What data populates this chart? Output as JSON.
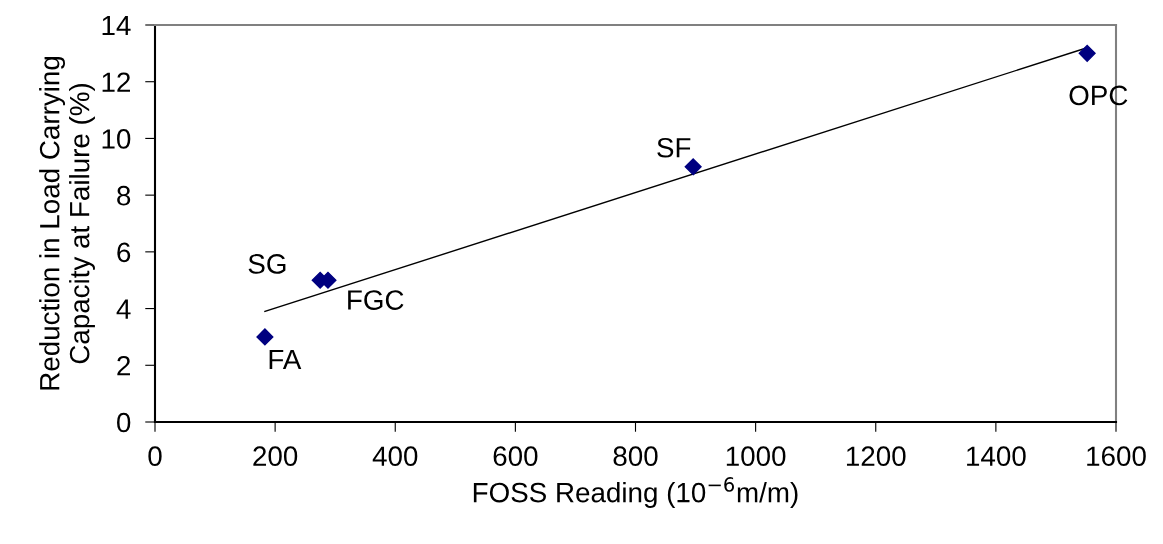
{
  "chart_data": {
    "type": "scatter",
    "xlabel": "FOSS Reading (10$^{−6}$m/m)",
    "ylabel": "Reduction in Load Carrying\nCapacity at Failure (%)",
    "xlim": [
      0,
      1600
    ],
    "xticks": [
      0,
      200,
      400,
      600,
      800,
      1000,
      1200,
      1400,
      1600
    ],
    "ylim": [
      0,
      14
    ],
    "yticks": [
      0,
      2,
      4,
      6,
      8,
      10,
      12,
      14
    ],
    "grid": false,
    "legend": false,
    "series": [
      {
        "color": "#000080",
        "marker": "diamond",
        "x": [
          183,
          275,
          288,
          896,
          1552
        ],
        "values": [
          3,
          5,
          5,
          9,
          13
        ]
      },
      {
        "type": "line",
        "marker": "none",
        "color": "#000000",
        "x": [
          183,
          1552
        ],
        "values": [
          3.9,
          13.2
        ]
      }
    ],
    "annotations": [
      {
        "text": "FA",
        "x": 183,
        "y": 3
      },
      {
        "text": "SG",
        "x": 275,
        "y": 5
      },
      {
        "text": "FGC",
        "x": 288,
        "y": 5
      },
      {
        "text": "SF",
        "x": 896,
        "y": 9
      },
      {
        "text": "OPC",
        "x": 1552,
        "y": 13
      }
    ]
  }
}
